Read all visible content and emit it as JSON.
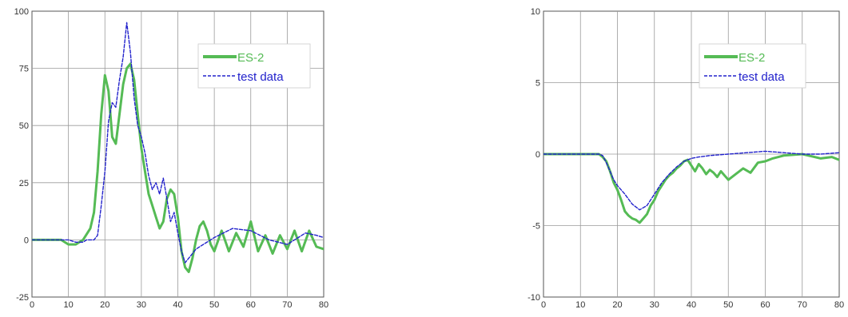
{
  "chart_data": [
    {
      "type": "line",
      "title": "",
      "xlabel": "",
      "ylabel": "",
      "xlim": [
        0,
        80
      ],
      "ylim": [
        -25,
        100
      ],
      "xticks": [
        0,
        10,
        20,
        30,
        40,
        50,
        60,
        70,
        80
      ],
      "yticks": [
        -25,
        0,
        25,
        50,
        75,
        100
      ],
      "grid": true,
      "legend": "top-right",
      "series": [
        {
          "name": "ES-2",
          "color": "#55bb55",
          "style": "solid",
          "x": [
            0,
            8,
            10,
            12,
            14,
            16,
            17,
            18,
            19,
            20,
            21,
            22,
            23,
            24,
            25,
            26,
            27,
            28,
            29,
            30,
            31,
            32,
            33,
            34,
            35,
            36,
            37,
            38,
            39,
            40,
            41,
            42,
            43,
            44,
            45,
            46,
            47,
            48,
            49,
            50,
            52,
            54,
            56,
            58,
            60,
            62,
            64,
            66,
            68,
            70,
            72,
            74,
            76,
            78,
            80
          ],
          "y": [
            0,
            0,
            -2,
            -2,
            0,
            5,
            12,
            30,
            55,
            72,
            65,
            45,
            42,
            55,
            68,
            75,
            77,
            70,
            55,
            40,
            30,
            20,
            15,
            10,
            5,
            8,
            18,
            22,
            20,
            10,
            -5,
            -12,
            -14,
            -8,
            0,
            6,
            8,
            4,
            -2,
            -5,
            4,
            -5,
            3,
            -3,
            8,
            -5,
            2,
            -6,
            2,
            -4,
            4,
            -5,
            4,
            -3,
            -4
          ]
        },
        {
          "name": "test data",
          "color": "#2222cc",
          "style": "dashed",
          "x": [
            0,
            8,
            10,
            12,
            14,
            15,
            16,
            17,
            18,
            19,
            20,
            21,
            22,
            23,
            24,
            25,
            26,
            27,
            28,
            29,
            30,
            31,
            32,
            33,
            34,
            35,
            36,
            37,
            38,
            39,
            40,
            41,
            42,
            43,
            45,
            47,
            50,
            55,
            60,
            65,
            70,
            75,
            78,
            80
          ],
          "y": [
            0,
            0,
            0,
            -1,
            -1,
            0,
            0,
            0,
            2,
            15,
            30,
            52,
            60,
            58,
            70,
            80,
            95,
            82,
            62,
            50,
            45,
            38,
            28,
            22,
            25,
            20,
            27,
            18,
            8,
            12,
            3,
            -5,
            -10,
            -8,
            -4,
            -2,
            1,
            5,
            4,
            0,
            -2,
            3,
            2,
            1
          ]
        }
      ]
    },
    {
      "type": "line",
      "title": "",
      "xlabel": "",
      "ylabel": "",
      "xlim": [
        0,
        80
      ],
      "ylim": [
        -10,
        10
      ],
      "xticks": [
        0,
        10,
        20,
        30,
        40,
        50,
        60,
        70,
        80
      ],
      "yticks": [
        -10,
        -5,
        0,
        5,
        10
      ],
      "grid": true,
      "legend": "top-right",
      "series": [
        {
          "name": "ES-2",
          "color": "#55bb55",
          "style": "solid",
          "x": [
            0,
            15,
            16,
            17,
            18,
            19,
            20,
            21,
            22,
            23,
            24,
            25,
            26,
            27,
            28,
            29,
            30,
            31,
            32,
            33,
            34,
            35,
            36,
            37,
            38,
            39,
            40,
            41,
            42,
            43,
            44,
            45,
            46,
            47,
            48,
            49,
            50,
            52,
            54,
            56,
            58,
            60,
            62,
            65,
            70,
            75,
            78,
            80
          ],
          "y": [
            0,
            0,
            -0.2,
            -0.5,
            -1.2,
            -2.0,
            -2.5,
            -3.2,
            -4.0,
            -4.3,
            -4.5,
            -4.6,
            -4.8,
            -4.5,
            -4.2,
            -3.6,
            -3.2,
            -2.6,
            -2.2,
            -1.8,
            -1.5,
            -1.3,
            -1.0,
            -0.8,
            -0.5,
            -0.4,
            -0.8,
            -1.2,
            -0.7,
            -1.0,
            -1.4,
            -1.1,
            -1.3,
            -1.6,
            -1.2,
            -1.5,
            -1.8,
            -1.4,
            -1.0,
            -1.3,
            -0.6,
            -0.5,
            -0.3,
            -0.1,
            0,
            -0.3,
            -0.2,
            -0.4
          ]
        },
        {
          "name": "test data",
          "color": "#2222cc",
          "style": "dashed",
          "x": [
            0,
            15,
            16,
            17,
            18,
            19,
            20,
            22,
            24,
            26,
            28,
            30,
            32,
            34,
            36,
            38,
            40,
            42,
            45,
            50,
            55,
            60,
            65,
            70,
            75,
            80
          ],
          "y": [
            0,
            0,
            -0.1,
            -0.6,
            -1.2,
            -1.8,
            -2.2,
            -2.8,
            -3.5,
            -3.9,
            -3.6,
            -2.8,
            -2.0,
            -1.4,
            -0.9,
            -0.5,
            -0.3,
            -0.2,
            -0.1,
            0,
            0.1,
            0.2,
            0.1,
            0,
            0,
            0.1
          ]
        }
      ]
    }
  ]
}
